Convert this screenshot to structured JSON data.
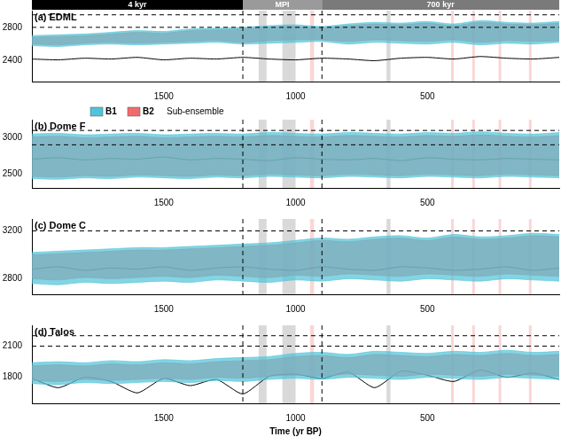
{
  "chart_data": [
    {
      "type": "line",
      "title": "(a) EDML",
      "x": [
        2000,
        1900,
        1800,
        1700,
        1600,
        1500,
        1400,
        1300,
        1200,
        1100,
        1000,
        900,
        800,
        700,
        600,
        500,
        400,
        300,
        200,
        100,
        0
      ],
      "xlim": [
        2000,
        0
      ],
      "xticks": [
        1500,
        1000,
        500
      ],
      "ylim": [
        2150,
        3000
      ],
      "yticks": [
        2400,
        2800
      ],
      "hlines": [
        2950,
        2800
      ],
      "grid": false,
      "series": [
        {
          "name": "B1",
          "color": "#4fc3d9",
          "lower": [
            2580,
            2570,
            2590,
            2600,
            2590,
            2600,
            2610,
            2620,
            2600,
            2610,
            2620,
            2630,
            2600,
            2620,
            2610,
            2600,
            2620,
            2590,
            2610,
            2600,
            2620
          ],
          "upper": [
            2700,
            2710,
            2720,
            2740,
            2760,
            2750,
            2780,
            2790,
            2800,
            2820,
            2830,
            2810,
            2840,
            2860,
            2850,
            2870,
            2840,
            2880,
            2860,
            2850,
            2870
          ]
        },
        {
          "name": "B2",
          "color": "#f26b6b",
          "lower": [
            2600,
            2590,
            2610,
            2620,
            2610,
            2620,
            2630,
            2640,
            2620,
            2640,
            2650,
            2650,
            2630,
            2650,
            2640,
            2630,
            2650,
            2620,
            2640,
            2630,
            2640
          ],
          "upper": [
            2680,
            2690,
            2700,
            2720,
            2740,
            2730,
            2760,
            2770,
            2780,
            2800,
            2810,
            2790,
            2820,
            2840,
            2830,
            2850,
            2820,
            2860,
            2840,
            2830,
            2850
          ]
        },
        {
          "color": "#000000",
          "values": [
            2420,
            2410,
            2430,
            2420,
            2440,
            2410,
            2430,
            2420,
            2440,
            2420,
            2410,
            2430,
            2420,
            2400,
            2430,
            2440,
            2420,
            2450,
            2430,
            2420,
            2440
          ]
        }
      ]
    },
    {
      "type": "line",
      "title": "(b) Dome F",
      "x": [
        2000,
        1900,
        1800,
        1700,
        1600,
        1500,
        1400,
        1300,
        1200,
        1100,
        1000,
        900,
        800,
        700,
        600,
        500,
        400,
        300,
        200,
        100,
        0
      ],
      "xlim": [
        2000,
        0
      ],
      "xticks": [
        1500,
        1000,
        500
      ],
      "ylim": [
        2300,
        3250
      ],
      "yticks": [
        2500,
        3000
      ],
      "hlines": [
        3100,
        2900
      ],
      "grid": false,
      "legend": "upper left",
      "legend_title": "Sub-ensemble",
      "series": [
        {
          "name": "B1",
          "color": "#4fc3d9",
          "lower": [
            2430,
            2420,
            2440,
            2430,
            2450,
            2440,
            2430,
            2450,
            2440,
            2460,
            2450,
            2440,
            2460,
            2450,
            2440,
            2460,
            2450,
            2440,
            2460,
            2450,
            2440
          ],
          "upper": [
            3050,
            3060,
            3040,
            3050,
            3060,
            3040,
            3050,
            3060,
            3050,
            3070,
            3060,
            3050,
            3070,
            3060,
            3050,
            3070,
            3060,
            3080,
            3060,
            3050,
            3070
          ]
        },
        {
          "name": "B2",
          "color": "#f26b6b",
          "lower": [
            2460,
            2450,
            2470,
            2460,
            2480,
            2470,
            2460,
            2480,
            2470,
            2490,
            2480,
            2470,
            2490,
            2480,
            2470,
            2490,
            2480,
            2470,
            2490,
            2480,
            2470
          ],
          "upper": [
            3010,
            3020,
            3000,
            3010,
            3020,
            3000,
            3010,
            3020,
            3010,
            3030,
            3020,
            3010,
            3030,
            3020,
            3010,
            3030,
            3020,
            3040,
            3020,
            3010,
            3030
          ]
        },
        {
          "color": "#000000",
          "values": [
            2700,
            2720,
            2690,
            2710,
            2700,
            2730,
            2690,
            2710,
            2700,
            2680,
            2720,
            2700,
            2690,
            2710,
            2680,
            2720,
            2700,
            2690,
            2710,
            2700,
            2690
          ]
        }
      ]
    },
    {
      "type": "line",
      "title": "(c) Dome C",
      "x": [
        2000,
        1900,
        1800,
        1700,
        1600,
        1500,
        1400,
        1300,
        1200,
        1100,
        1000,
        900,
        800,
        700,
        600,
        500,
        400,
        300,
        200,
        100,
        0
      ],
      "xlim": [
        2000,
        0
      ],
      "xticks": [
        1500,
        1000,
        500
      ],
      "ylim": [
        2670,
        3300
      ],
      "yticks": [
        2800,
        3200
      ],
      "hlines": [
        3200
      ],
      "grid": false,
      "series": [
        {
          "name": "B1",
          "color": "#4fc3d9",
          "lower": [
            2760,
            2750,
            2770,
            2760,
            2770,
            2780,
            2770,
            2790,
            2780,
            2770,
            2790,
            2780,
            2800,
            2790,
            2780,
            2800,
            2790,
            2780,
            2800,
            2790,
            2780
          ],
          "upper": [
            3020,
            3030,
            3040,
            3050,
            3060,
            3060,
            3070,
            3080,
            3090,
            3100,
            3120,
            3140,
            3130,
            3150,
            3160,
            3140,
            3170,
            3150,
            3160,
            3180,
            3170
          ]
        },
        {
          "name": "B2",
          "color": "#f26b6b",
          "lower": [
            2800,
            2790,
            2810,
            2800,
            2810,
            2820,
            2810,
            2830,
            2820,
            2810,
            2830,
            2820,
            2840,
            2830,
            2820,
            2840,
            2830,
            2820,
            2840,
            2830,
            2820
          ],
          "upper": [
            3000,
            3010,
            3020,
            3030,
            3040,
            3040,
            3050,
            3060,
            3070,
            3080,
            3100,
            3120,
            3110,
            3130,
            3140,
            3120,
            3150,
            3130,
            3140,
            3160,
            3150
          ]
        },
        {
          "color": "#000000",
          "values": [
            2880,
            2900,
            2870,
            2890,
            2880,
            2900,
            2870,
            2890,
            2900,
            2880,
            2870,
            2900,
            2880,
            2870,
            2900,
            2890,
            2870,
            2880,
            2900,
            2870,
            2890
          ]
        }
      ]
    },
    {
      "type": "line",
      "title": "(d) Talos",
      "xlabel": "Time (yr BP)",
      "x": [
        2000,
        1900,
        1800,
        1700,
        1600,
        1500,
        1400,
        1300,
        1200,
        1100,
        1000,
        900,
        800,
        700,
        600,
        500,
        400,
        300,
        200,
        100,
        0
      ],
      "xlim": [
        2000,
        0
      ],
      "xticks": [
        1500,
        1000,
        500
      ],
      "ylim": [
        1550,
        2300
      ],
      "yticks": [
        1800,
        2100
      ],
      "hlines": [
        2200,
        2100
      ],
      "grid": false,
      "series": [
        {
          "name": "B1",
          "color": "#4fc3d9",
          "lower": [
            1740,
            1730,
            1750,
            1740,
            1750,
            1760,
            1750,
            1770,
            1760,
            1780,
            1790,
            1780,
            1800,
            1790,
            1780,
            1800,
            1790,
            1780,
            1800,
            1790,
            1780
          ],
          "upper": [
            1940,
            1950,
            1940,
            1960,
            1950,
            1970,
            1960,
            1980,
            1990,
            2000,
            2030,
            2040,
            2020,
            2050,
            2040,
            2030,
            2050,
            2040,
            2060,
            2040,
            2050
          ]
        },
        {
          "name": "B2",
          "color": "#f26b6b",
          "lower": [
            1770,
            1760,
            1780,
            1770,
            1780,
            1790,
            1780,
            1800,
            1790,
            1810,
            1820,
            1810,
            1830,
            1820,
            1810,
            1830,
            1820,
            1810,
            1830,
            1820,
            1810
          ],
          "upper": [
            1910,
            1920,
            1910,
            1930,
            1920,
            1940,
            1930,
            1950,
            1960,
            1970,
            2000,
            2010,
            1990,
            2020,
            2010,
            2000,
            2020,
            2010,
            2030,
            2010,
            2020
          ]
        },
        {
          "color": "#000000",
          "values": [
            1790,
            1700,
            1800,
            1760,
            1650,
            1790,
            1720,
            1780,
            1640,
            1810,
            1830,
            1790,
            1850,
            1700,
            1860,
            1820,
            1760,
            1870,
            1800,
            1840,
            1780
          ]
        }
      ]
    }
  ],
  "periods": [
    {
      "from": 2000,
      "to": 1200,
      "label": "4 kyr",
      "color": "#000000"
    },
    {
      "from": 1200,
      "to": 900,
      "label": "MPI",
      "color": "#9a9a9a"
    },
    {
      "from": 900,
      "to": 0,
      "label": "700 kyr",
      "color": "#7a7a7a"
    }
  ],
  "vlines": [
    1200,
    900
  ],
  "bands": [
    {
      "from": 1140,
      "to": 1110,
      "color": "#d9d9d9"
    },
    {
      "from": 1050,
      "to": 1000,
      "color": "#d9d9d9"
    },
    {
      "from": 945,
      "to": 930,
      "color": "#fbd5d5"
    },
    {
      "from": 655,
      "to": 640,
      "color": "#d9d9d9"
    },
    {
      "from": 410,
      "to": 400,
      "color": "#fbd5d5"
    },
    {
      "from": 330,
      "to": 320,
      "color": "#fbd5d5"
    },
    {
      "from": 230,
      "to": 220,
      "color": "#fbd5d5"
    },
    {
      "from": 115,
      "to": 105,
      "color": "#fbd5d5"
    }
  ]
}
